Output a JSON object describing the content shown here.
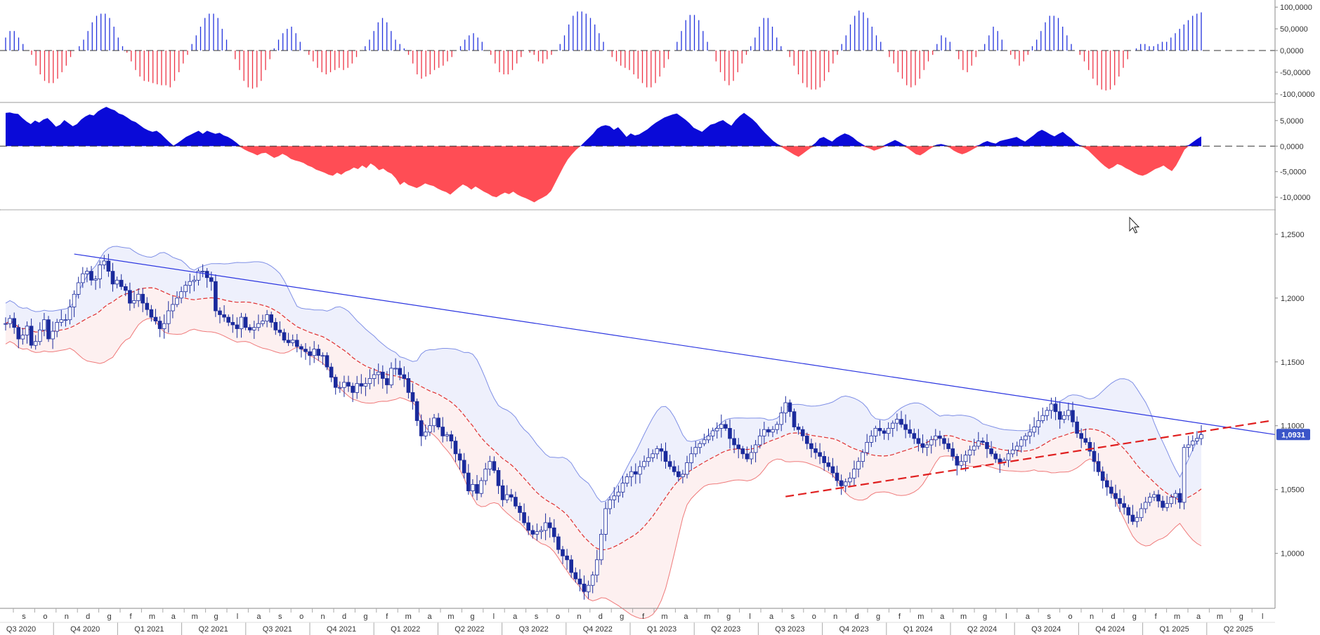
{
  "chart_data": [
    {
      "type": "bar",
      "panel": "histogram-oscillator",
      "ylim": [
        -110000,
        110000
      ],
      "y_ticks": [
        "100,0000",
        "50,0000",
        "0,0000",
        "-50,0000",
        "-100,0000"
      ],
      "y_tick_values": [
        100000,
        50000,
        0,
        -50000,
        -100000
      ],
      "values": [
        30000,
        45000,
        45000,
        30000,
        15000,
        0,
        -10000,
        -35000,
        -55000,
        -70000,
        -75000,
        -75000,
        -65000,
        -50000,
        -35000,
        -15000,
        0,
        10000,
        25000,
        45000,
        65000,
        80000,
        85000,
        85000,
        75000,
        55000,
        30000,
        10000,
        -5000,
        -25000,
        -45000,
        -60000,
        -70000,
        -72000,
        -75000,
        -78000,
        -80000,
        -80000,
        -85000,
        -70000,
        -50000,
        -30000,
        -10000,
        15000,
        35000,
        55000,
        75000,
        85000,
        85000,
        75000,
        50000,
        25000,
        0,
        -20000,
        -45000,
        -70000,
        -85000,
        -88000,
        -85000,
        -70000,
        -45000,
        -20000,
        5000,
        25000,
        40000,
        50000,
        55000,
        40000,
        20000,
        0,
        -10000,
        -25000,
        -40000,
        -50000,
        -55000,
        -50000,
        -45000,
        -40000,
        -45000,
        -40000,
        -30000,
        -15000,
        0,
        10000,
        25000,
        45000,
        65000,
        75000,
        65000,
        45000,
        25000,
        15000,
        5000,
        -10000,
        -30000,
        -55000,
        -65000,
        -60000,
        -55000,
        -45000,
        -40000,
        -35000,
        -25000,
        -15000,
        0,
        10000,
        25000,
        35000,
        40000,
        30000,
        20000,
        0,
        -10000,
        -30000,
        -50000,
        -55000,
        -55000,
        -45000,
        -30000,
        -15000,
        0,
        -5000,
        -10000,
        -25000,
        -30000,
        -20000,
        -10000,
        0,
        15000,
        35000,
        60000,
        80000,
        90000,
        90000,
        85000,
        75000,
        60000,
        40000,
        20000,
        0,
        -15000,
        -25000,
        -35000,
        -40000,
        -45000,
        -55000,
        -65000,
        -75000,
        -85000,
        -85000,
        -75000,
        -60000,
        -40000,
        -20000,
        0,
        20000,
        45000,
        70000,
        82000,
        82000,
        70000,
        45000,
        20000,
        0,
        -25000,
        -50000,
        -70000,
        -80000,
        -70000,
        -50000,
        -30000,
        -10000,
        10000,
        30000,
        55000,
        75000,
        75000,
        55000,
        30000,
        10000,
        0,
        -15000,
        -35000,
        -55000,
        -75000,
        -85000,
        -90000,
        -90000,
        -85000,
        -70000,
        -50000,
        -30000,
        -10000,
        15000,
        35000,
        60000,
        80000,
        92000,
        88000,
        75000,
        55000,
        35000,
        20000,
        0,
        -15000,
        -30000,
        -50000,
        -65000,
        -80000,
        -85000,
        -80000,
        -65000,
        -45000,
        -25000,
        -10000,
        15000,
        35000,
        30000,
        20000,
        0,
        -20000,
        -45000,
        -50000,
        -35000,
        -15000,
        0,
        15000,
        35000,
        55000,
        45000,
        25000,
        0,
        -10000,
        -20000,
        -35000,
        -25000,
        -10000,
        10000,
        25000,
        45000,
        65000,
        80000,
        80000,
        75000,
        55000,
        35000,
        15000,
        0,
        -10000,
        -25000,
        -45000,
        -65000,
        -80000,
        -90000,
        -92000,
        -90000,
        -80000,
        -60000,
        -40000,
        -20000,
        0,
        5000,
        15000,
        15000,
        10000,
        10000,
        15000,
        20000,
        20000,
        30000,
        40000,
        50000,
        60000,
        70000,
        80000,
        85000,
        88000
      ]
    },
    {
      "type": "area",
      "panel": "area-oscillator",
      "ylim": [
        -11500,
        8000
      ],
      "y_ticks": [
        "5,0000",
        "0,0000",
        "-5,0000",
        "-10,0000"
      ],
      "y_tick_values": [
        5000,
        0,
        -5000,
        -10000
      ],
      "values": [
        6500,
        6600,
        6400,
        6300,
        5500,
        4800,
        4300,
        5000,
        4600,
        5200,
        5500,
        4700,
        3800,
        4200,
        5100,
        4500,
        3900,
        4300,
        5200,
        5800,
        6200,
        6000,
        6800,
        7300,
        7700,
        7300,
        7000,
        6400,
        6100,
        5600,
        5000,
        4700,
        4100,
        3500,
        3100,
        2800,
        3000,
        2400,
        1600,
        800,
        100,
        600,
        1200,
        1800,
        2200,
        2600,
        3000,
        2400,
        3000,
        2700,
        2400,
        2600,
        2100,
        1800,
        1300,
        700,
        -200,
        -700,
        -1100,
        -1400,
        -1800,
        -1400,
        -1300,
        -1800,
        -2300,
        -2000,
        -1500,
        -1900,
        -2500,
        -2800,
        -3000,
        -3300,
        -3800,
        -4100,
        -4600,
        -4900,
        -5200,
        -5600,
        -5800,
        -5200,
        -5600,
        -5000,
        -4700,
        -4200,
        -4500,
        -3800,
        -4300,
        -3400,
        -3900,
        -4700,
        -4400,
        -5000,
        -5400,
        -6300,
        -7600,
        -7000,
        -7600,
        -7900,
        -8200,
        -7800,
        -7300,
        -7600,
        -7800,
        -8300,
        -8700,
        -9000,
        -9500,
        -8800,
        -8100,
        -7500,
        -7900,
        -8500,
        -7900,
        -8400,
        -8900,
        -9300,
        -9800,
        -10000,
        -9500,
        -9100,
        -9400,
        -8900,
        -9500,
        -9900,
        -10200,
        -10600,
        -11000,
        -10500,
        -10100,
        -9600,
        -8800,
        -7200,
        -5600,
        -4000,
        -2600,
        -1600,
        -700,
        0,
        800,
        1600,
        2400,
        3400,
        3900,
        4100,
        3900,
        3200,
        3700,
        2800,
        1800,
        2500,
        2100,
        2300,
        2800,
        3300,
        4000,
        4600,
        5100,
        5600,
        5900,
        6200,
        6400,
        5800,
        5200,
        4500,
        3600,
        3200,
        2800,
        3500,
        4200,
        4400,
        4800,
        5100,
        4500,
        4000,
        5100,
        5900,
        6500,
        5900,
        5300,
        4500,
        3500,
        2600,
        1800,
        1000,
        400,
        -200,
        -700,
        -1200,
        -1700,
        -2100,
        -1500,
        -900,
        -300,
        600,
        1500,
        1800,
        1300,
        900,
        1600,
        2100,
        2500,
        2200,
        1700,
        1000,
        500,
        -200,
        -500,
        -900,
        -600,
        -300,
        400,
        800,
        1200,
        800,
        300,
        -400,
        -1000,
        -1600,
        -1800,
        -1300,
        -700,
        -200,
        300,
        400,
        200,
        -300,
        -900,
        -1300,
        -1600,
        -1300,
        -900,
        -400,
        200,
        700,
        1000,
        700,
        500,
        1000,
        1200,
        1400,
        1600,
        1800,
        1300,
        900,
        1500,
        2100,
        2800,
        3200,
        2800,
        2300,
        1900,
        2400,
        2800,
        2100,
        1500,
        700,
        200,
        -300,
        -800,
        -1600,
        -2400,
        -3200,
        -3900,
        -4500,
        -4100,
        -3500,
        -3800,
        -4300,
        -4700,
        -5200,
        -5600,
        -5800,
        -5500,
        -5000,
        -4500,
        -4200,
        -3800,
        -4400,
        -4900,
        -3800,
        -2300,
        -700,
        200,
        800,
        1400,
        1900
      ]
    },
    {
      "type": "candlestick",
      "panel": "price",
      "ylim": [
        0.9575,
        1.2675
      ],
      "y_ticks": [
        "1,2500",
        "1,2000",
        "1,1500",
        "1,1000",
        "1,0500",
        "1,0000"
      ],
      "y_tick_values": [
        1.25,
        1.2,
        1.15,
        1.1,
        1.05,
        1.0
      ],
      "last_price_label": "1,0931",
      "colors": {
        "candle": "#1a2a9c",
        "band_fill_upper": "#eef0fc",
        "band_fill_lower": "#fdf0f0",
        "band_line_upper": "#7f8fe6",
        "band_line_lower": "#ef7a7a",
        "midline": "#e03030",
        "trendline": "#2b35e0",
        "support": "#e02020",
        "last_price_bg": "#3a55c8"
      },
      "x_month_ticks": [
        "s",
        "o",
        "n",
        "d",
        "g",
        "f",
        "m",
        "a",
        "m",
        "g",
        "l",
        "a",
        "s",
        "o",
        "n",
        "d",
        "g",
        "f",
        "m",
        "a",
        "m",
        "g",
        "l",
        "a",
        "s",
        "o",
        "n",
        "d",
        "g",
        "f",
        "m",
        "a",
        "m",
        "g",
        "l",
        "a",
        "s",
        "o",
        "n",
        "d",
        "g",
        "f",
        "m",
        "a",
        "m",
        "g",
        "l",
        "a",
        "s",
        "o",
        "n",
        "d",
        "g",
        "f",
        "m",
        "a",
        "m",
        "g",
        "l"
      ],
      "x_quarter_ticks": [
        "Q3 2020",
        "Q4 2020",
        "Q1 2021",
        "Q2 2021",
        "Q3 2021",
        "Q4 2021",
        "Q1 2022",
        "Q2 2022",
        "Q3 2022",
        "Q4 2022",
        "Q1 2023",
        "Q2 2023",
        "Q3 2023",
        "Q4 2023",
        "Q1 2024",
        "Q2 2024",
        "Q3 2024",
        "Q4 2024",
        "Q1 2025",
        "Q2 2025"
      ],
      "close": [
        1.18,
        1.184,
        1.177,
        1.168,
        1.171,
        1.178,
        1.163,
        1.166,
        1.175,
        1.183,
        1.168,
        1.174,
        1.181,
        1.183,
        1.183,
        1.193,
        1.203,
        1.212,
        1.219,
        1.221,
        1.214,
        1.215,
        1.226,
        1.229,
        1.221,
        1.211,
        1.214,
        1.209,
        1.206,
        1.196,
        1.198,
        1.203,
        1.196,
        1.191,
        1.185,
        1.182,
        1.176,
        1.18,
        1.19,
        1.195,
        1.2,
        1.205,
        1.21,
        1.213,
        1.214,
        1.221,
        1.221,
        1.216,
        1.213,
        1.19,
        1.187,
        1.185,
        1.181,
        1.179,
        1.176,
        1.185,
        1.177,
        1.175,
        1.177,
        1.18,
        1.182,
        1.187,
        1.181,
        1.175,
        1.173,
        1.167,
        1.165,
        1.167,
        1.162,
        1.16,
        1.158,
        1.155,
        1.16,
        1.155,
        1.155,
        1.146,
        1.138,
        1.13,
        1.13,
        1.134,
        1.131,
        1.126,
        1.133,
        1.131,
        1.133,
        1.137,
        1.14,
        1.142,
        1.137,
        1.132,
        1.145,
        1.145,
        1.14,
        1.137,
        1.126,
        1.119,
        1.104,
        1.092,
        1.095,
        1.1,
        1.106,
        1.099,
        1.092,
        1.093,
        1.088,
        1.078,
        1.073,
        1.063,
        1.049,
        1.054,
        1.047,
        1.057,
        1.066,
        1.072,
        1.065,
        1.053,
        1.042,
        1.046,
        1.044,
        1.037,
        1.032,
        1.024,
        1.018,
        1.015,
        1.017,
        1.018,
        1.024,
        1.02,
        1.013,
        1.003,
        0.998,
        0.995,
        0.985,
        0.98,
        0.976,
        0.97,
        0.975,
        0.983,
        0.995,
        1.015,
        1.035,
        1.042,
        1.045,
        1.048,
        1.055,
        1.06,
        1.064,
        1.062,
        1.068,
        1.072,
        1.075,
        1.078,
        1.082,
        1.08,
        1.072,
        1.068,
        1.064,
        1.06,
        1.062,
        1.071,
        1.078,
        1.083,
        1.086,
        1.089,
        1.092,
        1.096,
        1.098,
        1.101,
        1.098,
        1.09,
        1.085,
        1.082,
        1.078,
        1.074,
        1.079,
        1.085,
        1.092,
        1.097,
        1.095,
        1.097,
        1.101,
        1.11,
        1.118,
        1.111,
        1.099,
        1.097,
        1.092,
        1.086,
        1.082,
        1.079,
        1.076,
        1.071,
        1.068,
        1.063,
        1.057,
        1.053,
        1.056,
        1.059,
        1.066,
        1.072,
        1.079,
        1.087,
        1.092,
        1.098,
        1.096,
        1.094,
        1.098,
        1.102,
        1.105,
        1.101,
        1.097,
        1.094,
        1.09,
        1.086,
        1.083,
        1.085,
        1.089,
        1.092,
        1.09,
        1.086,
        1.082,
        1.076,
        1.069,
        1.072,
        1.077,
        1.081,
        1.084,
        1.088,
        1.087,
        1.082,
        1.078,
        1.074,
        1.071,
        1.073,
        1.078,
        1.081,
        1.084,
        1.089,
        1.092,
        1.095,
        1.099,
        1.104,
        1.108,
        1.112,
        1.117,
        1.111,
        1.105,
        1.108,
        1.112,
        1.103,
        1.094,
        1.09,
        1.087,
        1.08,
        1.072,
        1.064,
        1.057,
        1.052,
        1.047,
        1.043,
        1.039,
        1.036,
        1.03,
        1.025,
        1.028,
        1.035,
        1.04,
        1.044,
        1.046,
        1.041,
        1.036,
        1.039,
        1.044,
        1.047,
        1.04,
        1.083,
        1.085,
        1.088,
        1.09,
        1.093
      ]
    }
  ]
}
